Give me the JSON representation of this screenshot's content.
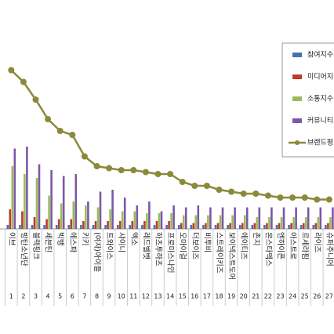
{
  "chart_data": {
    "type": "bar",
    "categories": [
      "이브",
      "방탄소년단",
      "블랙핑크",
      "세븐틴",
      "빅뱅",
      "에스파",
      "키키",
      "(여자)아이들",
      "트와이스",
      "샤이니",
      "엑소",
      "레드벨벳",
      "하츠투하츠",
      "프로미스나인",
      "오마이걸",
      "더보이즈",
      "비투비",
      "스트레이키즈",
      "보이넥스트도어",
      "에이티즈",
      "존지",
      "몬스타엑스",
      "엔하이픈",
      "아스트로",
      "르세라핌",
      "라이즈",
      "슈퍼주니어"
    ],
    "ranks": [
      "1",
      "2",
      "3",
      "4",
      "5",
      "6",
      "7",
      "8",
      "9",
      "10",
      "11",
      "12",
      "13",
      "14",
      "15",
      "16",
      "17",
      "18",
      "19",
      "20",
      "21",
      "22",
      "23",
      "24",
      "25",
      "26",
      "27"
    ],
    "ylim": [
      0,
      100
    ],
    "series": [
      {
        "name": "참여지수",
        "color": "#4a6fb5",
        "values": [
          2,
          2,
          2,
          2,
          2,
          2,
          2,
          2,
          2,
          2,
          2,
          2,
          2,
          2,
          2,
          2,
          2,
          2,
          2,
          2,
          2,
          2,
          2,
          2,
          2,
          2,
          2
        ]
      },
      {
        "name": "미디어지",
        "color": "#c0392b",
        "values": [
          10,
          9,
          6,
          5,
          5,
          5,
          4,
          4,
          4,
          4,
          4,
          4,
          4,
          4,
          3,
          3,
          3,
          3,
          3,
          3,
          3,
          3,
          3,
          3,
          3,
          3,
          3
        ]
      },
      {
        "name": "소통지수",
        "color": "#9bbb59",
        "values": [
          32,
          28,
          26,
          17,
          13,
          14,
          12,
          11,
          10,
          9,
          9,
          8,
          8,
          8,
          7,
          7,
          7,
          7,
          7,
          7,
          6,
          6,
          6,
          6,
          6,
          6,
          6
        ]
      },
      {
        "name": "커뮤니티",
        "color": "#7e57a6",
        "values": [
          41,
          42,
          33,
          30,
          27,
          28,
          14,
          19,
          20,
          16,
          12,
          14,
          9,
          12,
          11,
          12,
          11,
          11,
          11,
          11,
          11,
          11,
          11,
          11,
          11,
          11,
          11
        ]
      },
      {
        "name": "브랜드평",
        "color": "#8a8a3a",
        "line": true,
        "values": [
          81,
          75,
          66,
          56,
          50,
          48,
          37,
          32,
          31,
          30,
          30,
          29,
          28,
          28,
          24,
          22,
          22,
          20,
          19,
          18,
          18,
          17,
          16,
          16,
          16,
          15,
          15
        ]
      }
    ]
  }
}
